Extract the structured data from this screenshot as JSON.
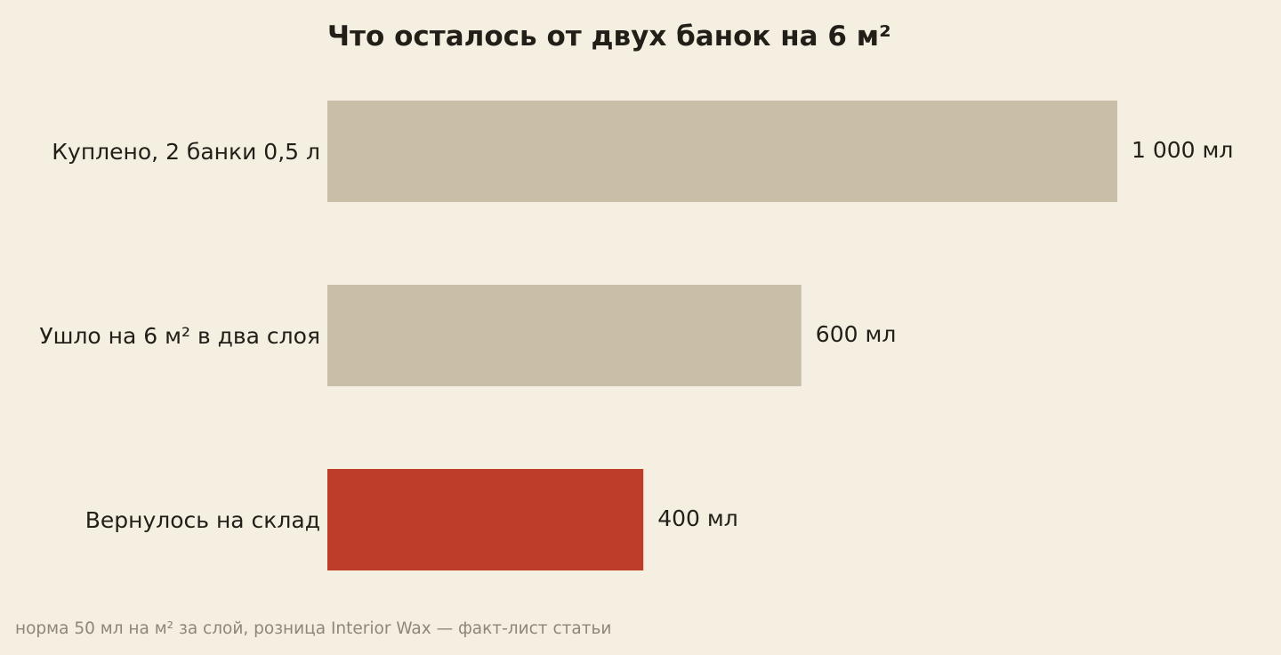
{
  "chart_data": {
    "type": "bar",
    "orientation": "horizontal",
    "title": "Что осталось от двух банок на 6 м²",
    "categories": [
      "Куплено, 2 банки 0,5 л",
      "Ушло на 6 м² в два слоя",
      "Вернулось на склад"
    ],
    "values": [
      1000,
      600,
      400
    ],
    "value_labels": [
      "1 000 мл",
      "600 мл",
      "400 мл"
    ],
    "unit": "мл",
    "xlim": [
      0,
      1000
    ],
    "grid": false,
    "bar_colors": [
      "#c9bea7",
      "#c9bea7",
      "#bd3d28"
    ]
  },
  "footnote": "норма 50 мл на м² за слой, розница Interior Wax — факт-лист статьи"
}
